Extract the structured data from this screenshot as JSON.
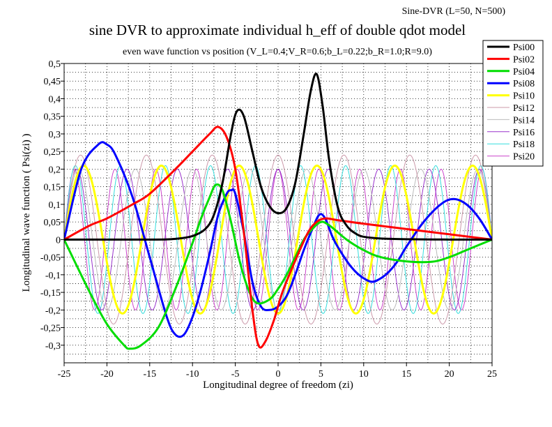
{
  "header": {
    "top_right": "Sine-DVR (L=50, N=500)",
    "title": "sine DVR to approximate individual h_eff of double qdot model",
    "subtitle": "even wave function vs position (V_L=0.4;V_R=0.6;b_L=0.22;b_R=1.0;R=9.0)"
  },
  "chart_data": {
    "type": "line",
    "title": "sine DVR to approximate individual h_eff of double qdot model",
    "subtitle": "even wave function vs position (V_L=0.4;V_R=0.6;b_L=0.22;b_R=1.0;R=9.0)",
    "xlabel": "Longitudinal degree of freedom (zi)",
    "ylabel": "Longitudinal wave function ( Psi(zi) )",
    "xlim": [
      -25,
      25
    ],
    "ylim": [
      -0.35,
      0.5
    ],
    "xticks": [
      "-25",
      "-20",
      "-15",
      "-10",
      "-5",
      "0",
      "5",
      "10",
      "15",
      "20",
      "25"
    ],
    "yticks": [
      "0,5",
      "0,45",
      "0,4",
      "0,35",
      "0,3",
      "0,25",
      "0,2",
      "0,15",
      "0,1",
      "0,05",
      "0",
      "-0,05",
      "-0,1",
      "-0,15",
      "-0,2",
      "-0,25",
      "-0,3"
    ],
    "grid": true,
    "legend_position": "top-right",
    "series": [
      {
        "name": "Psi00",
        "color": "#000000",
        "width": 3,
        "x": [
          -25,
          -15,
          -12,
          -10,
          -8.5,
          -7.5,
          -6.5,
          -5.5,
          -4.8,
          -4,
          -3,
          -2,
          -1,
          0,
          1,
          2,
          3,
          3.8,
          4.5,
          5.2,
          6,
          7,
          8,
          9,
          10,
          12,
          15,
          20,
          25
        ],
        "y": [
          0,
          0,
          0.002,
          0.01,
          0.03,
          0.07,
          0.16,
          0.3,
          0.365,
          0.35,
          0.25,
          0.15,
          0.095,
          0.075,
          0.09,
          0.16,
          0.3,
          0.42,
          0.47,
          0.38,
          0.22,
          0.09,
          0.04,
          0.018,
          0.008,
          0.003,
          0.001,
          0,
          0
        ]
      },
      {
        "name": "Psi02",
        "color": "#ff0000",
        "width": 3,
        "x": [
          -25,
          -22,
          -20,
          -17,
          -15,
          -12,
          -10,
          -8,
          -7,
          -6,
          -5,
          -4,
          -3,
          -2.3,
          -1.5,
          -0.5,
          0.5,
          2,
          3.5,
          4.5,
          5.5,
          7,
          10,
          15,
          20,
          25
        ],
        "y": [
          0,
          0.04,
          0.06,
          0.1,
          0.13,
          0.2,
          0.25,
          0.3,
          0.32,
          0.29,
          0.2,
          0.02,
          -0.2,
          -0.3,
          -0.29,
          -0.23,
          -0.15,
          -0.06,
          0.02,
          0.05,
          0.06,
          0.055,
          0.045,
          0.03,
          0.015,
          0
        ]
      },
      {
        "name": "Psi04",
        "color": "#00dd00",
        "width": 3,
        "x": [
          -25,
          -22,
          -20,
          -18,
          -17.3,
          -16,
          -14,
          -12,
          -10,
          -9,
          -8,
          -7.3,
          -6.5,
          -5.5,
          -4.5,
          -3.5,
          -2.5,
          -1,
          0,
          1,
          2,
          3,
          4,
          5,
          6,
          8,
          10,
          12,
          15,
          18,
          20,
          22,
          25
        ],
        "y": [
          0,
          -0.15,
          -0.24,
          -0.3,
          -0.31,
          -0.3,
          -0.25,
          -0.14,
          -0.01,
          0.06,
          0.12,
          0.155,
          0.14,
          0.05,
          -0.06,
          -0.14,
          -0.18,
          -0.17,
          -0.14,
          -0.1,
          -0.05,
          0.0,
          0.03,
          0.05,
          0.04,
          0.0,
          -0.03,
          -0.05,
          -0.062,
          -0.063,
          -0.05,
          -0.03,
          0
        ]
      },
      {
        "name": "Psi08",
        "color": "#0000ff",
        "width": 3,
        "x": [
          -25,
          -23,
          -21,
          -20,
          -19,
          -17,
          -15,
          -13,
          -12,
          -11,
          -10,
          -9,
          -8,
          -7,
          -6,
          -5.5,
          -5,
          -4,
          -3,
          -2,
          -1,
          0,
          1,
          2,
          3,
          4,
          4.8,
          5.5,
          6.5,
          8,
          9,
          10,
          11,
          12,
          13,
          14,
          15,
          17,
          19,
          20.5,
          22,
          23.5,
          25
        ],
        "y": [
          0,
          0.2,
          0.27,
          0.27,
          0.24,
          0.12,
          -0.05,
          -0.22,
          -0.27,
          -0.27,
          -0.22,
          -0.14,
          -0.04,
          0.07,
          0.13,
          0.14,
          0.13,
          0.02,
          -0.12,
          -0.19,
          -0.2,
          -0.19,
          -0.16,
          -0.1,
          -0.03,
          0.03,
          0.07,
          0.06,
          0.0,
          -0.06,
          -0.09,
          -0.11,
          -0.12,
          -0.11,
          -0.09,
          -0.06,
          -0.02,
          0.05,
          0.1,
          0.115,
          0.1,
          0.06,
          0
        ]
      }
    ],
    "oscillators": [
      {
        "name": "Psi10",
        "color": "#ffff00",
        "width": 3,
        "amplitude": 0.21,
        "half_waves": 11
      },
      {
        "name": "Psi12",
        "color": "#cc99aa",
        "width": 1,
        "amplitude": 0.24,
        "half_waves": 13
      },
      {
        "name": "Psi14",
        "color": "#bbbbbb",
        "width": 1,
        "amplitude": 0.2,
        "half_waves": 15
      },
      {
        "name": "Psi16",
        "color": "#9933cc",
        "width": 1,
        "amplitude": 0.2,
        "half_waves": 17
      },
      {
        "name": "Psi18",
        "color": "#33dddd",
        "width": 1,
        "amplitude": 0.21,
        "half_waves": 19
      },
      {
        "name": "Psi20",
        "color": "#cc44cc",
        "width": 1,
        "amplitude": 0.2,
        "half_waves": 21
      }
    ],
    "legend": [
      "Psi00",
      "Psi02",
      "Psi04",
      "Psi08",
      "Psi10",
      "Psi12",
      "Psi14",
      "Psi16",
      "Psi18",
      "Psi20"
    ]
  }
}
